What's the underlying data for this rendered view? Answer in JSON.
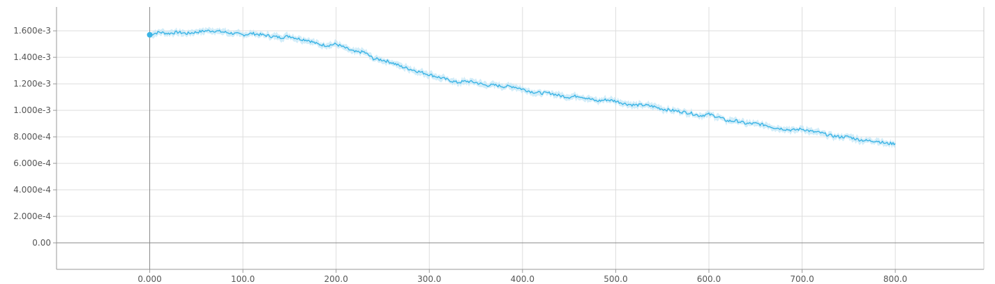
{
  "chart_data": {
    "type": "line",
    "title": "",
    "xlabel": "",
    "ylabel": "",
    "xlim": [
      -100,
      895
    ],
    "ylim": [
      -0.0002,
      0.00178
    ],
    "grid": true,
    "legend": "none",
    "colors": {
      "series": "#3bb4e5",
      "band": "#bfe5f6",
      "grid": "#dddddd",
      "axis": "#999999"
    },
    "x_ticks": [
      0,
      100,
      200,
      300,
      400,
      500,
      600,
      700,
      800
    ],
    "x_tick_labels": [
      "0.000",
      "100.0",
      "200.0",
      "300.0",
      "400.0",
      "500.0",
      "600.0",
      "700.0",
      "800.0"
    ],
    "y_ticks": [
      0,
      0.0002,
      0.0004,
      0.0006,
      0.0008,
      0.001,
      0.0012,
      0.0014,
      0.0016
    ],
    "y_tick_labels": [
      "0.00",
      "2.000e-4",
      "4.000e-4",
      "6.000e-4",
      "8.000e-4",
      "1.000e-3",
      "1.200e-3",
      "1.400e-3",
      "1.600e-3"
    ],
    "series": [
      {
        "x": [
          0,
          10,
          20,
          30,
          40,
          50,
          60,
          70,
          80,
          90,
          100,
          110,
          120,
          130,
          140,
          150,
          160,
          170,
          180,
          190,
          200,
          210,
          220,
          230,
          240,
          250,
          260,
          270,
          280,
          290,
          300,
          310,
          320,
          330,
          340,
          350,
          360,
          370,
          380,
          390,
          400,
          410,
          420,
          430,
          440,
          450,
          460,
          470,
          480,
          490,
          500,
          510,
          520,
          530,
          540,
          550,
          560,
          570,
          580,
          590,
          600,
          610,
          620,
          630,
          640,
          650,
          660,
          670,
          680,
          690,
          700,
          710,
          720,
          730,
          740,
          750,
          760,
          770,
          780,
          790,
          800
        ],
        "y": [
          0.00157,
          0.00159,
          0.00158,
          0.00159,
          0.00158,
          0.00159,
          0.0016,
          0.0016,
          0.00159,
          0.00158,
          0.00157,
          0.00158,
          0.00157,
          0.00156,
          0.00155,
          0.00156,
          0.00154,
          0.00153,
          0.0015,
          0.00149,
          0.0015,
          0.00147,
          0.00144,
          0.00144,
          0.00139,
          0.00138,
          0.00136,
          0.00133,
          0.00131,
          0.00129,
          0.00127,
          0.00125,
          0.00123,
          0.00121,
          0.00122,
          0.00121,
          0.00119,
          0.00119,
          0.00118,
          0.00118,
          0.00116,
          0.00114,
          0.00113,
          0.00113,
          0.00111,
          0.0011,
          0.00111,
          0.00109,
          0.00107,
          0.00108,
          0.00107,
          0.00105,
          0.00104,
          0.00104,
          0.00103,
          0.00101,
          0.001,
          0.00099,
          0.00098,
          0.00096,
          0.00097,
          0.00095,
          0.00092,
          0.00092,
          0.0009,
          0.0009,
          0.00089,
          0.00087,
          0.00086,
          0.00085,
          0.00086,
          0.00084,
          0.00083,
          0.00081,
          0.0008,
          0.0008,
          0.00078,
          0.00077,
          0.00077,
          0.00075,
          0.00075
        ]
      }
    ]
  }
}
